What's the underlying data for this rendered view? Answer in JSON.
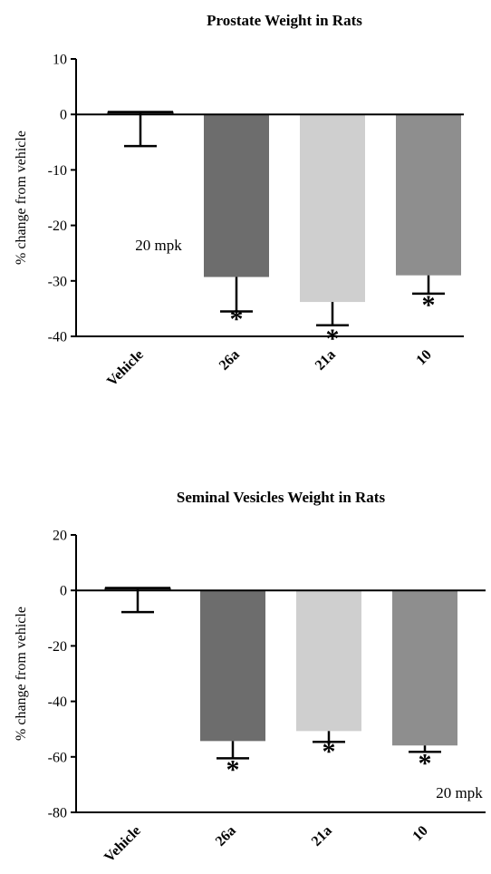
{
  "chart_data": [
    {
      "type": "bar",
      "title": "Prostate Weight in  Rats",
      "ylabel": "% change from vehicle",
      "xlabel": "",
      "ylim": [
        -40,
        10
      ],
      "yticks": [
        10,
        0,
        -10,
        -20,
        -30,
        -40
      ],
      "categories": [
        "Vehicle",
        "26a",
        "21a",
        "10"
      ],
      "values": [
        0.4,
        -29.3,
        -33.8,
        -29.0
      ],
      "errors": [
        6.1,
        6.2,
        4.2,
        3.3
      ],
      "colors": [
        "#ffffff",
        "#6d6d6d",
        "#cfcfcf",
        "#8e8e8e"
      ],
      "significant": [
        "",
        "*",
        "*",
        "*"
      ],
      "annotation": "20 mpk",
      "grid": false
    },
    {
      "type": "bar",
      "title": "Seminal  Vesicles Weight in  Rats",
      "ylabel": "% change from vehicle",
      "xlabel": "",
      "ylim": [
        -80,
        20
      ],
      "yticks": [
        20,
        0,
        -20,
        -40,
        -60,
        -80
      ],
      "categories": [
        "Vehicle",
        "26a",
        "21a",
        "10"
      ],
      "values": [
        0.8,
        -54.3,
        -50.7,
        -55.9
      ],
      "errors": [
        8.6,
        6.2,
        3.9,
        2.3
      ],
      "colors": [
        "#ffffff",
        "#6d6d6d",
        "#cfcfcf",
        "#8e8e8e"
      ],
      "significant": [
        "",
        "*",
        "*",
        "*"
      ],
      "annotation": "20 mpk",
      "grid": false
    }
  ]
}
